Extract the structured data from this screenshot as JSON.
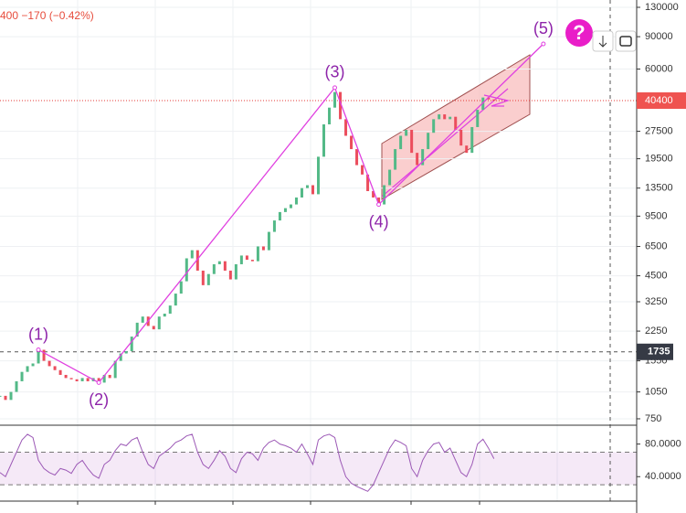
{
  "chart_data": {
    "type": "candlestick",
    "header": "400 −170 (−0.42%)",
    "help_icon": "?",
    "log_scale": true,
    "grid": true,
    "up_color": "#53b987",
    "down_color": "#eb4d5c",
    "x": [
      0,
      1,
      2,
      3,
      4,
      5,
      6,
      7,
      8,
      9,
      10,
      11,
      12,
      13,
      14,
      15,
      16,
      17,
      18,
      19,
      20,
      21,
      22,
      23,
      24,
      25,
      26,
      27,
      28,
      29,
      30,
      31,
      32,
      33,
      34,
      35,
      36,
      37,
      38,
      39,
      40,
      41,
      42,
      43,
      44,
      45,
      46,
      47,
      48,
      49,
      50,
      51,
      52,
      53,
      54,
      55,
      56,
      57,
      58,
      59,
      60,
      61,
      62,
      63,
      64,
      65,
      66,
      67,
      68,
      69,
      70,
      71,
      72,
      73,
      74,
      75,
      76,
      77,
      78,
      79,
      80,
      81,
      82,
      83,
      84,
      85,
      86,
      87,
      88,
      89,
      90
    ],
    "xlim": [
      0,
      116
    ],
    "values": [
      1000,
      950,
      1050,
      1200,
      1350,
      1450,
      1500,
      1780,
      1550,
      1450,
      1380,
      1300,
      1250,
      1230,
      1200,
      1250,
      1200,
      1250,
      1180,
      1300,
      1250,
      1550,
      1700,
      1750,
      2100,
      2500,
      2700,
      2400,
      2300,
      2700,
      2800,
      3100,
      3600,
      4200,
      5600,
      6200,
      4800,
      4000,
      4600,
      5200,
      5400,
      4800,
      4300,
      5200,
      5800,
      5500,
      5400,
      6500,
      6200,
      7800,
      9000,
      10000,
      10500,
      11000,
      12000,
      13500,
      14000,
      12500,
      20000,
      30000,
      37000,
      45000,
      32000,
      26000,
      22000,
      18000,
      16000,
      13000,
      12000,
      11000,
      14000,
      17000,
      22000,
      26000,
      28000,
      21000,
      18000,
      22000,
      27000,
      32000,
      34000,
      32000,
      33000,
      28000,
      23000,
      21000,
      29000,
      36000,
      42000,
      41000,
      40400
    ],
    "ylim": [
      692,
      142500
    ],
    "yticks": [
      130000,
      90000,
      60000,
      27500,
      19500,
      13500,
      9500,
      6500,
      4500,
      3250,
      2250,
      1550,
      1050,
      750
    ],
    "last_price": 40400,
    "marked_level": 1735,
    "waves": {
      "labels": [
        "(1)",
        "(2)",
        "(3)",
        "(4)",
        "(5)"
      ],
      "x": [
        7,
        18,
        61,
        69,
        99
      ],
      "values": [
        1780,
        1180,
        47500,
        11000,
        82200
      ],
      "color": "#e040e0",
      "label_color": "#8e24aa"
    },
    "rsi": {
      "color": "#9c59b6",
      "ylim": [
        10,
        102
      ],
      "yticks": [
        {
          "value": 80,
          "label": "80.0000"
        },
        {
          "value": 40,
          "label": "40.0000"
        }
      ],
      "bands": [
        70,
        30
      ],
      "values": [
        45,
        40,
        55,
        70,
        85,
        92,
        88,
        60,
        50,
        45,
        42,
        50,
        48,
        44,
        55,
        60,
        50,
        42,
        38,
        55,
        60,
        72,
        80,
        78,
        85,
        88,
        70,
        55,
        50,
        65,
        70,
        75,
        82,
        85,
        90,
        92,
        70,
        55,
        50,
        60,
        72,
        65,
        50,
        45,
        62,
        70,
        68,
        60,
        75,
        82,
        85,
        80,
        78,
        75,
        70,
        80,
        68,
        55,
        85,
        90,
        92,
        88,
        60,
        40,
        32,
        28,
        25,
        22,
        30,
        45,
        60,
        75,
        85,
        82,
        78,
        50,
        40,
        60,
        72,
        80,
        82,
        70,
        75,
        60,
        45,
        40,
        55,
        80,
        86,
        75,
        62
      ]
    }
  }
}
